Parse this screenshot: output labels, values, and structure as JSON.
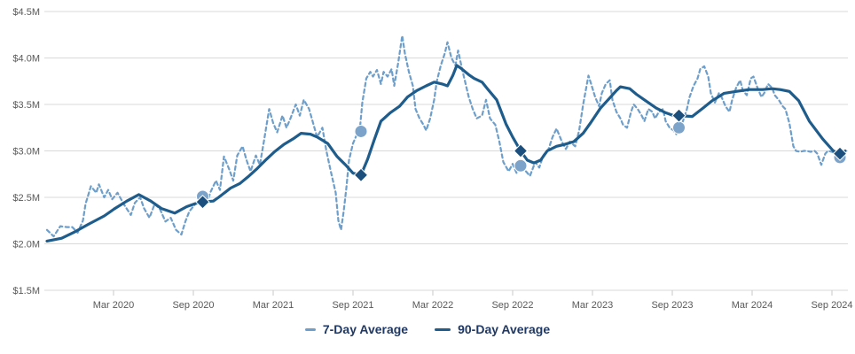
{
  "chart_data": {
    "type": "line",
    "title": "",
    "xlabel": "",
    "ylabel": "",
    "ylim": [
      1.5,
      4.5
    ],
    "grid": true,
    "legend_position": "bottom-center",
    "x_unit": "month index (0 = chart start, ~Oct 2019)",
    "y_ticks": [
      {
        "value": 4.5,
        "label": "$4.5M"
      },
      {
        "value": 4.0,
        "label": "$4.0M"
      },
      {
        "value": 3.5,
        "label": "$3.5M"
      },
      {
        "value": 3.0,
        "label": "$3.0M"
      },
      {
        "value": 2.5,
        "label": "$2.5M"
      },
      {
        "value": 2.0,
        "label": "$2.0M"
      },
      {
        "value": 1.5,
        "label": "$1.5M"
      }
    ],
    "x_ticks": [
      {
        "month": 5,
        "label": "Mar 2020"
      },
      {
        "month": 11,
        "label": "Sep 2020"
      },
      {
        "month": 17,
        "label": "Mar 2021"
      },
      {
        "month": 23,
        "label": "Sep 2021"
      },
      {
        "month": 29,
        "label": "Mar 2022"
      },
      {
        "month": 35,
        "label": "Sep 2022"
      },
      {
        "month": 41,
        "label": "Mar 2023"
      },
      {
        "month": 47,
        "label": "Sep 2023"
      },
      {
        "month": 53,
        "label": "Mar 2024"
      },
      {
        "month": 59,
        "label": "Sep 2024"
      }
    ],
    "series": [
      {
        "name": "7-Day Average",
        "style": "dashed",
        "color": "#6E9FCA",
        "points": [
          [
            0,
            2.15
          ],
          [
            0.5,
            2.08
          ],
          [
            1,
            2.19
          ],
          [
            1.5,
            2.18
          ],
          [
            1.9,
            2.18
          ],
          [
            2.3,
            2.12
          ],
          [
            2.7,
            2.25
          ],
          [
            2.9,
            2.43
          ],
          [
            3.3,
            2.62
          ],
          [
            3.7,
            2.55
          ],
          [
            3.9,
            2.64
          ],
          [
            4.3,
            2.5
          ],
          [
            4.6,
            2.58
          ],
          [
            4.9,
            2.48
          ],
          [
            5.3,
            2.55
          ],
          [
            5.8,
            2.42
          ],
          [
            6.3,
            2.31
          ],
          [
            6.6,
            2.44
          ],
          [
            7,
            2.5
          ],
          [
            7.3,
            2.38
          ],
          [
            7.7,
            2.28
          ],
          [
            8.1,
            2.43
          ],
          [
            8.5,
            2.37
          ],
          [
            8.9,
            2.24
          ],
          [
            9.3,
            2.28
          ],
          [
            9.7,
            2.15
          ],
          [
            10.1,
            2.1
          ],
          [
            10.4,
            2.24
          ],
          [
            10.7,
            2.35
          ],
          [
            11.1,
            2.42
          ],
          [
            11.4,
            2.48
          ],
          [
            11.7,
            2.51
          ],
          [
            12,
            2.43
          ],
          [
            12.3,
            2.56
          ],
          [
            12.7,
            2.68
          ],
          [
            13,
            2.58
          ],
          [
            13.3,
            2.94
          ],
          [
            13.7,
            2.8
          ],
          [
            14,
            2.68
          ],
          [
            14.3,
            2.95
          ],
          [
            14.7,
            3.05
          ],
          [
            15,
            2.9
          ],
          [
            15.3,
            2.78
          ],
          [
            15.7,
            2.95
          ],
          [
            16,
            2.85
          ],
          [
            16.3,
            3.1
          ],
          [
            16.7,
            3.45
          ],
          [
            17,
            3.3
          ],
          [
            17.3,
            3.2
          ],
          [
            17.7,
            3.38
          ],
          [
            18,
            3.25
          ],
          [
            18.3,
            3.35
          ],
          [
            18.7,
            3.5
          ],
          [
            19,
            3.38
          ],
          [
            19.3,
            3.55
          ],
          [
            19.7,
            3.45
          ],
          [
            20,
            3.3
          ],
          [
            20.3,
            3.15
          ],
          [
            20.7,
            3.25
          ],
          [
            21,
            3.0
          ],
          [
            21.3,
            2.8
          ],
          [
            21.7,
            2.55
          ],
          [
            21.9,
            2.25
          ],
          [
            22.1,
            2.15
          ],
          [
            22.3,
            2.35
          ],
          [
            22.5,
            2.6
          ],
          [
            22.7,
            2.9
          ],
          [
            23,
            3.08
          ],
          [
            23.3,
            3.18
          ],
          [
            23.5,
            3.21
          ],
          [
            23.7,
            3.52
          ],
          [
            24,
            3.78
          ],
          [
            24.3,
            3.85
          ],
          [
            24.5,
            3.8
          ],
          [
            24.8,
            3.87
          ],
          [
            25.1,
            3.72
          ],
          [
            25.3,
            3.85
          ],
          [
            25.6,
            3.8
          ],
          [
            25.9,
            3.88
          ],
          [
            26.1,
            3.7
          ],
          [
            26.4,
            3.95
          ],
          [
            26.7,
            4.24
          ],
          [
            26.9,
            4.05
          ],
          [
            27.2,
            3.85
          ],
          [
            27.5,
            3.7
          ],
          [
            27.7,
            3.45
          ],
          [
            28,
            3.35
          ],
          [
            28.3,
            3.28
          ],
          [
            28.5,
            3.22
          ],
          [
            28.8,
            3.35
          ],
          [
            29.1,
            3.55
          ],
          [
            29.3,
            3.75
          ],
          [
            29.6,
            3.92
          ],
          [
            29.9,
            4.05
          ],
          [
            30.1,
            4.17
          ],
          [
            30.4,
            4.0
          ],
          [
            30.7,
            3.92
          ],
          [
            30.9,
            4.08
          ],
          [
            31.2,
            3.88
          ],
          [
            31.5,
            3.7
          ],
          [
            31.7,
            3.58
          ],
          [
            32,
            3.45
          ],
          [
            32.3,
            3.35
          ],
          [
            32.7,
            3.38
          ],
          [
            33,
            3.55
          ],
          [
            33.3,
            3.35
          ],
          [
            33.7,
            3.28
          ],
          [
            34,
            3.1
          ],
          [
            34.3,
            2.88
          ],
          [
            34.7,
            2.78
          ],
          [
            35,
            2.86
          ],
          [
            35.3,
            2.76
          ],
          [
            35.7,
            2.84
          ],
          [
            36,
            2.78
          ],
          [
            36.3,
            2.73
          ],
          [
            36.7,
            2.88
          ],
          [
            37,
            2.82
          ],
          [
            37.3,
            2.95
          ],
          [
            37.7,
            3.02
          ],
          [
            38,
            3.15
          ],
          [
            38.3,
            3.24
          ],
          [
            38.7,
            3.1
          ],
          [
            39,
            3.02
          ],
          [
            39.3,
            3.1
          ],
          [
            39.7,
            3.05
          ],
          [
            40,
            3.22
          ],
          [
            40.3,
            3.5
          ],
          [
            40.7,
            3.81
          ],
          [
            40.9,
            3.72
          ],
          [
            41.2,
            3.58
          ],
          [
            41.5,
            3.48
          ],
          [
            41.7,
            3.62
          ],
          [
            42,
            3.72
          ],
          [
            42.3,
            3.76
          ],
          [
            42.5,
            3.55
          ],
          [
            42.8,
            3.42
          ],
          [
            43.1,
            3.35
          ],
          [
            43.3,
            3.28
          ],
          [
            43.6,
            3.25
          ],
          [
            43.9,
            3.42
          ],
          [
            44.1,
            3.5
          ],
          [
            44.4,
            3.45
          ],
          [
            44.7,
            3.38
          ],
          [
            44.9,
            3.32
          ],
          [
            45.2,
            3.45
          ],
          [
            45.5,
            3.42
          ],
          [
            45.7,
            3.35
          ],
          [
            46,
            3.42
          ],
          [
            46.3,
            3.45
          ],
          [
            46.5,
            3.32
          ],
          [
            46.8,
            3.25
          ],
          [
            47.1,
            3.22
          ],
          [
            47.3,
            3.18
          ],
          [
            47.5,
            3.25
          ],
          [
            47.8,
            3.32
          ],
          [
            48.1,
            3.45
          ],
          [
            48.3,
            3.58
          ],
          [
            48.6,
            3.7
          ],
          [
            48.9,
            3.78
          ],
          [
            49.1,
            3.88
          ],
          [
            49.4,
            3.91
          ],
          [
            49.7,
            3.8
          ],
          [
            49.9,
            3.62
          ],
          [
            50.2,
            3.52
          ],
          [
            50.5,
            3.62
          ],
          [
            50.7,
            3.58
          ],
          [
            51,
            3.48
          ],
          [
            51.3,
            3.42
          ],
          [
            51.5,
            3.55
          ],
          [
            51.8,
            3.68
          ],
          [
            52.1,
            3.76
          ],
          [
            52.3,
            3.65
          ],
          [
            52.6,
            3.6
          ],
          [
            52.9,
            3.78
          ],
          [
            53.1,
            3.8
          ],
          [
            53.4,
            3.68
          ],
          [
            53.7,
            3.58
          ],
          [
            53.9,
            3.62
          ],
          [
            54.2,
            3.72
          ],
          [
            54.5,
            3.68
          ],
          [
            54.7,
            3.6
          ],
          [
            55,
            3.55
          ],
          [
            55.3,
            3.48
          ],
          [
            55.5,
            3.45
          ],
          [
            55.8,
            3.3
          ],
          [
            56.1,
            3.05
          ],
          [
            56.3,
            3.0
          ],
          [
            56.6,
            2.99
          ],
          [
            56.9,
            3.0
          ],
          [
            57.1,
            3.0
          ],
          [
            57.4,
            2.99
          ],
          [
            57.7,
            3.0
          ],
          [
            57.9,
            2.97
          ],
          [
            58.2,
            2.85
          ],
          [
            58.5,
            2.97
          ],
          [
            58.7,
            3.0
          ],
          [
            59,
            2.99
          ],
          [
            59.3,
            2.97
          ],
          [
            59.5,
            2.93
          ]
        ]
      },
      {
        "name": "90-Day Average",
        "style": "solid",
        "color": "#1E5C8C",
        "points": [
          [
            0,
            2.03
          ],
          [
            1.1,
            2.06
          ],
          [
            2.1,
            2.13
          ],
          [
            3.1,
            2.21
          ],
          [
            4.3,
            2.3
          ],
          [
            5.1,
            2.38
          ],
          [
            6,
            2.46
          ],
          [
            6.9,
            2.53
          ],
          [
            7.8,
            2.46
          ],
          [
            8.6,
            2.38
          ],
          [
            9.6,
            2.33
          ],
          [
            10.5,
            2.4
          ],
          [
            11.3,
            2.44
          ],
          [
            11.7,
            2.45
          ],
          [
            12.5,
            2.46
          ],
          [
            12.9,
            2.5
          ],
          [
            13.8,
            2.6
          ],
          [
            14.5,
            2.65
          ],
          [
            15.1,
            2.72
          ],
          [
            15.8,
            2.81
          ],
          [
            16.5,
            2.91
          ],
          [
            17.1,
            2.99
          ],
          [
            17.8,
            3.07
          ],
          [
            18.5,
            3.13
          ],
          [
            19.1,
            3.19
          ],
          [
            19.8,
            3.18
          ],
          [
            20.3,
            3.15
          ],
          [
            21.1,
            3.08
          ],
          [
            21.8,
            2.94
          ],
          [
            22.5,
            2.84
          ],
          [
            23,
            2.76
          ],
          [
            23.6,
            2.74
          ],
          [
            24.1,
            2.91
          ],
          [
            24.6,
            3.12
          ],
          [
            25.1,
            3.32
          ],
          [
            25.8,
            3.41
          ],
          [
            26.5,
            3.48
          ],
          [
            27.1,
            3.58
          ],
          [
            27.8,
            3.65
          ],
          [
            28.5,
            3.7
          ],
          [
            29.1,
            3.74
          ],
          [
            29.7,
            3.72
          ],
          [
            30.1,
            3.7
          ],
          [
            30.5,
            3.81
          ],
          [
            30.8,
            3.92
          ],
          [
            31.1,
            3.89
          ],
          [
            31.7,
            3.82
          ],
          [
            32.1,
            3.78
          ],
          [
            32.7,
            3.74
          ],
          [
            33.1,
            3.67
          ],
          [
            33.8,
            3.55
          ],
          [
            34.5,
            3.29
          ],
          [
            35,
            3.15
          ],
          [
            35.6,
            3.0
          ],
          [
            36.1,
            2.9
          ],
          [
            36.6,
            2.87
          ],
          [
            37.1,
            2.9
          ],
          [
            37.6,
            3.0
          ],
          [
            38.3,
            3.05
          ],
          [
            38.9,
            3.07
          ],
          [
            39.6,
            3.1
          ],
          [
            40.3,
            3.19
          ],
          [
            40.9,
            3.31
          ],
          [
            41.6,
            3.46
          ],
          [
            42.3,
            3.57
          ],
          [
            42.8,
            3.65
          ],
          [
            43.1,
            3.69
          ],
          [
            43.8,
            3.67
          ],
          [
            44.3,
            3.61
          ],
          [
            44.9,
            3.55
          ],
          [
            45.8,
            3.46
          ],
          [
            46.5,
            3.41
          ],
          [
            47.1,
            3.38
          ],
          [
            47.5,
            3.38
          ],
          [
            48.5,
            3.37
          ],
          [
            49.3,
            3.46
          ],
          [
            50,
            3.54
          ],
          [
            50.9,
            3.62
          ],
          [
            51.8,
            3.64
          ],
          [
            52.8,
            3.66
          ],
          [
            53.8,
            3.66
          ],
          [
            54.5,
            3.67
          ],
          [
            55.1,
            3.66
          ],
          [
            55.8,
            3.64
          ],
          [
            56.5,
            3.54
          ],
          [
            57.3,
            3.32
          ],
          [
            58.3,
            3.13
          ],
          [
            59.1,
            3.0
          ],
          [
            59.6,
            2.97
          ],
          [
            60,
            3.0
          ]
        ]
      }
    ],
    "fiscal_year_markers": {
      "months": [
        11.7,
        23.6,
        35.6,
        47.5,
        59.6
      ],
      "seven_day_values": [
        2.51,
        3.21,
        2.84,
        3.25,
        2.93
      ],
      "ninety_day_values": [
        2.45,
        2.74,
        3.0,
        3.38,
        2.97
      ],
      "seven_day_marker": "circle",
      "ninety_day_marker": "diamond",
      "circle_color": "#7CA3C9",
      "diamond_color": "#1B4F7D"
    },
    "colors": {
      "grid": "#D9D9D9",
      "axis_text": "#595959",
      "legend_text": "#1F3864",
      "background": "#FFFFFF"
    }
  }
}
